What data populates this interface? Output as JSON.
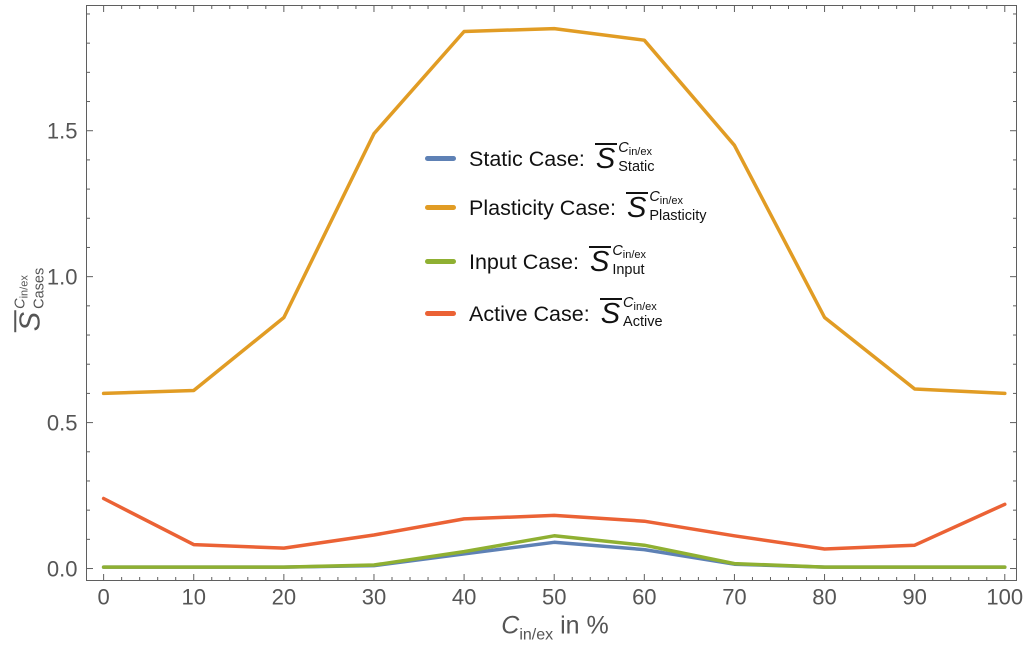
{
  "figure": {
    "background": "#ffffff",
    "frame_color": "#5f5f5f",
    "tick_label_color": "#555555",
    "axis_label_color": "#555555"
  },
  "chart_data": {
    "type": "line",
    "x": [
      0,
      10,
      20,
      30,
      40,
      50,
      60,
      70,
      80,
      90,
      100
    ],
    "series": [
      {
        "name": "Static Case",
        "color": "#5e81b5",
        "values": [
          0.005,
          0.005,
          0.005,
          0.01,
          0.05,
          0.09,
          0.065,
          0.015,
          0.005,
          0.005,
          0.005
        ]
      },
      {
        "name": "Plasticity Case",
        "color": "#e19c24",
        "values": [
          0.6,
          0.61,
          0.86,
          1.49,
          1.84,
          1.85,
          1.81,
          1.45,
          0.86,
          0.615,
          0.6
        ]
      },
      {
        "name": "Input Case",
        "color": "#8fb032",
        "values": [
          0.005,
          0.005,
          0.005,
          0.012,
          0.058,
          0.112,
          0.08,
          0.017,
          0.005,
          0.005,
          0.005
        ]
      },
      {
        "name": "Active Case",
        "color": "#eb6235",
        "values": [
          0.24,
          0.082,
          0.07,
          0.115,
          0.17,
          0.182,
          0.162,
          0.112,
          0.067,
          0.08,
          0.22
        ]
      }
    ],
    "xticks": [
      0,
      10,
      20,
      30,
      40,
      50,
      60,
      70,
      80,
      90,
      100
    ],
    "xtick_labels": [
      "0",
      "10",
      "20",
      "30",
      "40",
      "50",
      "60",
      "70",
      "80",
      "90",
      "100"
    ],
    "yticks": [
      0,
      0.5,
      1.0,
      1.5
    ],
    "ytick_labels": [
      "0.0",
      "0.5",
      "1.0",
      "1.5"
    ],
    "x_minor_step": 2,
    "y_minor_step": 0.1,
    "xlim": [
      -1.9,
      101.3
    ],
    "ylim": [
      -0.041,
      1.929
    ],
    "grid": false,
    "frame": true,
    "legend_position": "upper-center-left",
    "xlabel": {
      "var": "C",
      "var_sub": "in/ex",
      "suffix": " in %"
    },
    "ylabel": {
      "base": "S",
      "sup_base": "C",
      "sup_sub": "in/ex",
      "sub": "Cases"
    }
  },
  "legend": {
    "items": [
      {
        "label": "Static Case:",
        "color": "#5e81b5",
        "math": {
          "base": "S",
          "sup_base": "C",
          "sup_sub": "in/ex",
          "sub": "Static"
        }
      },
      {
        "label": "Plasticity Case:",
        "color": "#e19c24",
        "math": {
          "base": "S",
          "sup_base": "C",
          "sup_sub": "in/ex",
          "sub": "Plasticity"
        }
      },
      {
        "label": "Input Case:",
        "color": "#8fb032",
        "math": {
          "base": "S",
          "sup_base": "C",
          "sup_sub": "in/ex",
          "sub": "Input"
        }
      },
      {
        "label": "Active Case:",
        "color": "#eb6235",
        "math": {
          "base": "S",
          "sup_base": "C",
          "sup_sub": "in/ex",
          "sub": "Active"
        }
      }
    ]
  }
}
